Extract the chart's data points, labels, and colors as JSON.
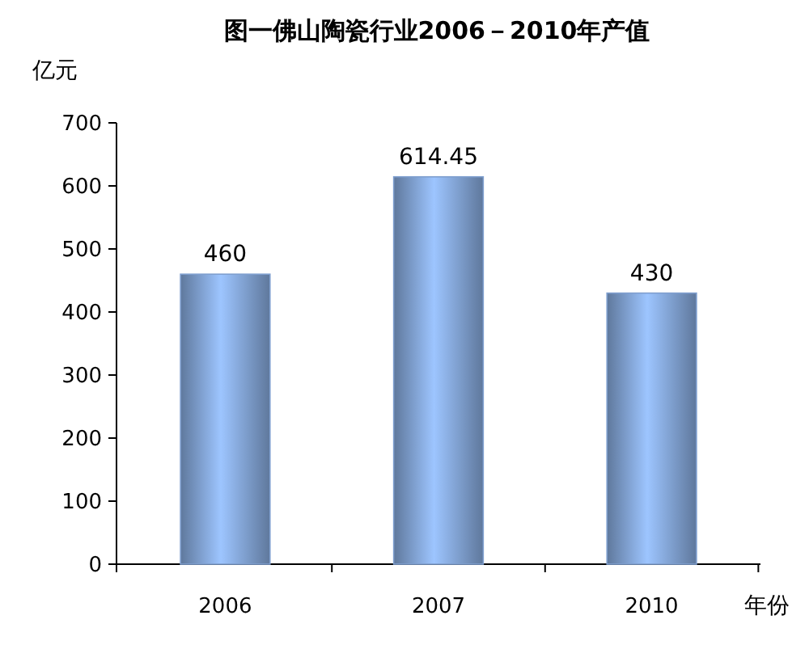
{
  "chart_data": {
    "type": "bar",
    "title": "图一佛山陶瓷行业2006－2010年产值",
    "ylabel": "亿元",
    "xlabel": "年份",
    "categories": [
      "2006",
      "2007",
      "2010"
    ],
    "values": [
      460,
      614.45,
      430
    ],
    "color": "#7f9fcf",
    "ylim": [
      0,
      700
    ],
    "yticks": [
      0,
      100,
      200,
      300,
      400,
      500,
      600,
      700
    ],
    "data_labels": true
  }
}
